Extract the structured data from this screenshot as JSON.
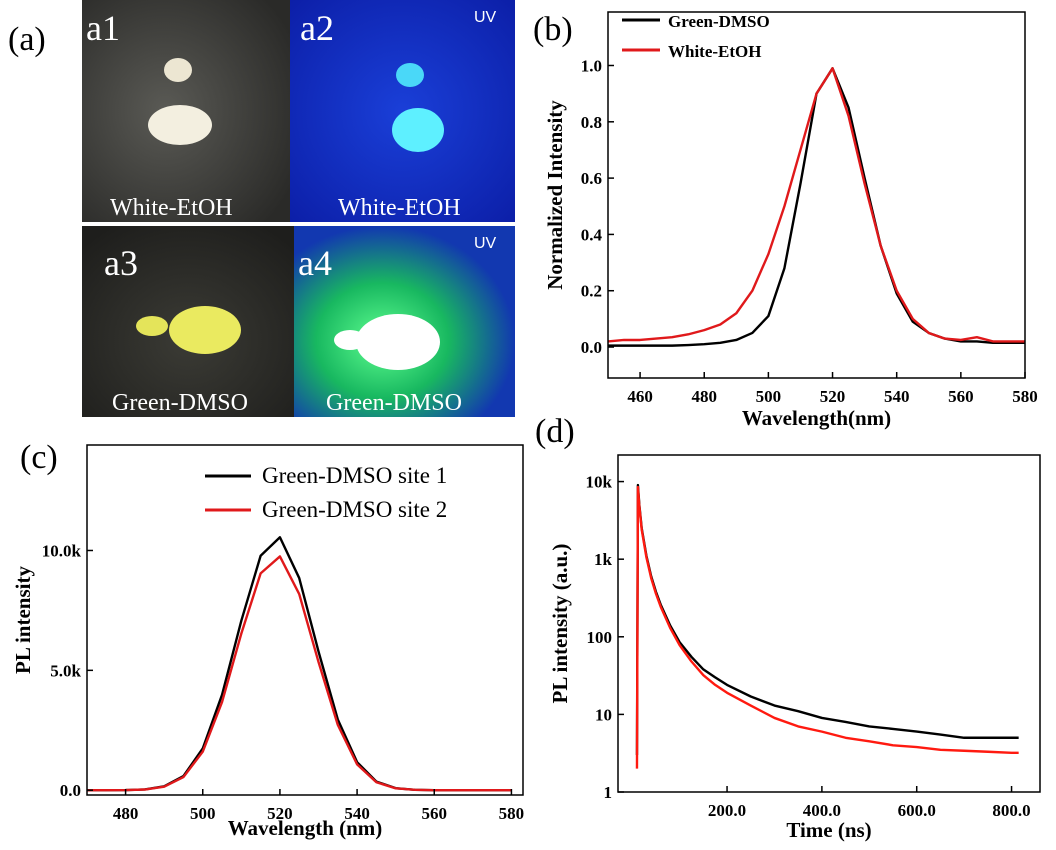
{
  "photos": {
    "panel_label": "(a)",
    "tiles": [
      {
        "id": "a1",
        "caption": "White-EtOH"
      },
      {
        "id": "a2",
        "tag": "UV",
        "caption": "White-EtOH"
      },
      {
        "id": "a3",
        "caption": "Green-DMSO"
      },
      {
        "id": "a4",
        "tag": "UV",
        "caption": "Green-DMSO"
      }
    ]
  },
  "chart_data": [
    {
      "type": "line",
      "panel_label": "(b)",
      "x_label": "Wavelength(nm)",
      "y_label": "Normalized Intensity",
      "x": [
        450,
        455,
        460,
        465,
        470,
        475,
        480,
        485,
        490,
        495,
        500,
        505,
        510,
        515,
        520,
        525,
        530,
        535,
        540,
        545,
        550,
        555,
        560,
        565,
        570,
        575,
        580
      ],
      "series": [
        {
          "name": "Green-DMSO",
          "color": "#000000",
          "values": [
            0.005,
            0.005,
            0.005,
            0.005,
            0.005,
            0.007,
            0.01,
            0.015,
            0.025,
            0.05,
            0.11,
            0.28,
            0.58,
            0.9,
            0.99,
            0.85,
            0.6,
            0.36,
            0.19,
            0.09,
            0.05,
            0.03,
            0.02,
            0.02,
            0.015,
            0.015,
            0.015
          ]
        },
        {
          "name": "White-EtOH",
          "color": "#e0191b",
          "values": [
            0.02,
            0.025,
            0.025,
            0.03,
            0.035,
            0.045,
            0.06,
            0.08,
            0.12,
            0.2,
            0.33,
            0.5,
            0.7,
            0.9,
            0.99,
            0.82,
            0.58,
            0.36,
            0.2,
            0.1,
            0.05,
            0.03,
            0.025,
            0.035,
            0.02,
            0.02,
            0.02
          ]
        }
      ],
      "xlim": [
        450,
        580
      ],
      "xticks": [
        460,
        480,
        500,
        520,
        540,
        560,
        580
      ],
      "ylim": [
        -0.11,
        1.19
      ],
      "yticks": [
        {
          "value": 0,
          "label": "0.0"
        },
        0.2,
        0.4,
        0.6,
        0.8,
        {
          "value": 1,
          "label": "1.0"
        }
      ],
      "legend": "upper left"
    },
    {
      "type": "line",
      "panel_label": "(c)",
      "x_label": "Wavelength (nm)",
      "y_label": "PL intensity",
      "x": [
        470,
        475,
        480,
        485,
        490,
        495,
        500,
        505,
        510,
        515,
        520,
        525,
        530,
        535,
        540,
        545,
        550,
        555,
        560,
        565,
        570,
        575,
        580
      ],
      "series": [
        {
          "name": "Green-DMSO site 1",
          "color": "#000000",
          "values": [
            0,
            1,
            5,
            32,
            160,
            590,
            1740,
            3980,
            7070,
            9780,
            10550,
            8850,
            5790,
            2950,
            1170,
            360,
            85,
            16,
            0,
            0,
            0,
            0,
            0
          ]
        },
        {
          "name": "Green-DMSO site 2",
          "color": "#e0191b",
          "values": [
            0,
            1,
            5,
            29,
            147,
            549,
            1607,
            3675,
            6537,
            9045,
            9751,
            8183,
            5351,
            2724,
            1078,
            333,
            78,
            15,
            0,
            0,
            0,
            0,
            0
          ]
        }
      ],
      "xlim": [
        470,
        583
      ],
      "xticks": [
        480,
        500,
        520,
        540,
        560,
        580
      ],
      "ylim": [
        -200,
        14400
      ],
      "yticks": [
        {
          "value": 0,
          "label": "0.0"
        },
        {
          "value": 5000,
          "label": "5.0k"
        },
        {
          "value": 10000,
          "label": "10.0k"
        }
      ],
      "legend": "upper right"
    },
    {
      "type": "line",
      "panel_label": "(d)",
      "x_label": "Time (ns)",
      "y_label": "PL intensity (a.u.)",
      "log_y": true,
      "x": [
        10,
        12,
        15,
        20,
        30,
        40,
        50,
        60,
        80,
        100,
        125,
        150,
        175,
        200,
        250,
        300,
        350,
        400,
        450,
        500,
        550,
        600,
        650,
        700,
        750,
        800,
        815
      ],
      "series": [
        {
          "color": "#000000",
          "values": [
            3,
            9000,
            5000,
            2500,
            1100,
            600,
            380,
            260,
            140,
            85,
            55,
            38,
            30,
            24,
            17,
            13,
            11,
            9,
            8,
            7,
            6.5,
            6,
            5.5,
            5,
            5,
            5,
            5
          ]
        },
        {
          "color": "#ff1a10",
          "values": [
            2,
            8500,
            4800,
            2400,
            1050,
            570,
            360,
            245,
            130,
            78,
            48,
            32,
            24,
            19,
            13,
            9,
            7,
            6,
            5,
            4.5,
            4,
            3.8,
            3.5,
            3.4,
            3.3,
            3.2,
            3.2
          ]
        }
      ],
      "xlim": [
        -30,
        860
      ],
      "xticks": [
        {
          "value": 200,
          "label": "200.0"
        },
        {
          "value": 400,
          "label": "400.0"
        },
        {
          "value": 600,
          "label": "600.0"
        },
        {
          "value": 800,
          "label": "800.0"
        }
      ],
      "ylim": [
        1,
        22000
      ],
      "yticks": [
        1,
        10,
        100,
        {
          "value": 1000,
          "label": "1k"
        },
        {
          "value": 10000,
          "label": "10k"
        }
      ]
    }
  ]
}
